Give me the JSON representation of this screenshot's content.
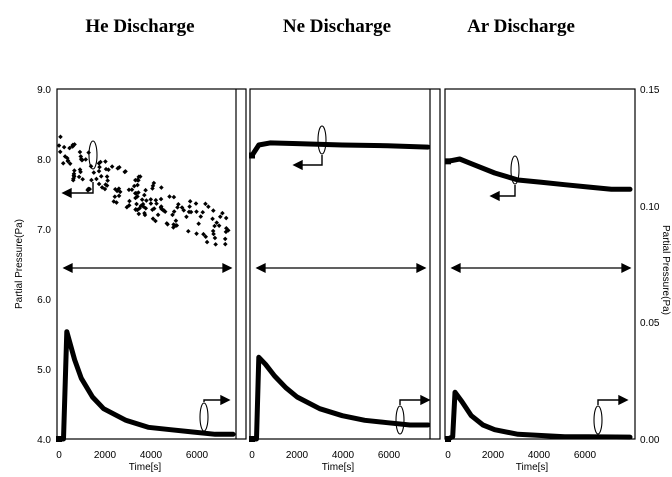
{
  "chart_data": [
    {
      "type": "scatter",
      "title": "He Discharge",
      "xlabel": "Time[s]",
      "ylabel": "Partial Pressure(Pa)",
      "xlim": [
        0,
        7800
      ],
      "x_ticks": [
        "0",
        "2000",
        "4000",
        "6000"
      ],
      "ylim_left": [
        4.0,
        9.0
      ],
      "ylim_right": [
        0.0,
        0.15
      ],
      "y_ticks_left": [
        "4.0",
        "5.0",
        "6.0",
        "7.0",
        "8.0",
        "9.0"
      ],
      "series": [
        {
          "axis": "left",
          "style": "scatter",
          "points": [
            [
              0,
              8.2
            ],
            [
              400,
              8.05
            ],
            [
              800,
              7.9
            ],
            [
              1500,
              7.8
            ],
            [
              2500,
              7.65
            ],
            [
              3500,
              7.5
            ],
            [
              4500,
              7.35
            ],
            [
              5500,
              7.2
            ],
            [
              6500,
              7.1
            ],
            [
              7000,
              7.0
            ],
            [
              7500,
              6.95
            ],
            [
              7800,
              6.95
            ]
          ]
        },
        {
          "axis": "right",
          "style": "line",
          "points": [
            [
              0,
              0.0
            ],
            [
              200,
              0.0
            ],
            [
              350,
              0.046
            ],
            [
              700,
              0.034
            ],
            [
              1000,
              0.026
            ],
            [
              1500,
              0.018
            ],
            [
              2000,
              0.013
            ],
            [
              3000,
              0.008
            ],
            [
              4000,
              0.005
            ],
            [
              5000,
              0.004
            ],
            [
              6000,
              0.003
            ],
            [
              7000,
              0.002
            ],
            [
              7800,
              0.002
            ]
          ]
        }
      ],
      "arrow_left": 8.12,
      "arrow_right": 0.016
    },
    {
      "type": "scatter",
      "title": "Ne Discharge",
      "xlabel": "Time[s]",
      "xlim": [
        0,
        7800
      ],
      "x_ticks": [
        "0",
        "2000",
        "4000",
        "6000"
      ],
      "series": [
        {
          "axis": "left",
          "style": "line",
          "points": [
            [
              0,
              8.05
            ],
            [
              300,
              8.2
            ],
            [
              800,
              8.23
            ],
            [
              2000,
              8.22
            ],
            [
              4000,
              8.2
            ],
            [
              6000,
              8.19
            ],
            [
              7800,
              8.17
            ]
          ]
        },
        {
          "axis": "right",
          "style": "line",
          "points": [
            [
              0,
              0.0
            ],
            [
              200,
              0.0
            ],
            [
              300,
              0.035
            ],
            [
              600,
              0.032
            ],
            [
              1000,
              0.027
            ],
            [
              1500,
              0.022
            ],
            [
              2000,
              0.018
            ],
            [
              3000,
              0.013
            ],
            [
              4000,
              0.01
            ],
            [
              5000,
              0.008
            ],
            [
              6000,
              0.007
            ],
            [
              7000,
              0.006
            ],
            [
              7800,
              0.006
            ]
          ]
        }
      ],
      "arrow_left": 8.07,
      "arrow_right": 0.016
    },
    {
      "type": "scatter",
      "title": "Ar Discharge",
      "xlabel": "Time[s]",
      "xlim": [
        0,
        7800
      ],
      "x_ticks": [
        "0",
        "2000",
        "4000",
        "6000"
      ],
      "ylabel_right": "Partial Pressure(Pa)",
      "y_ticks_right": [
        "0.00",
        "0.05",
        "0.10",
        "0.15"
      ],
      "series": [
        {
          "axis": "left",
          "style": "line",
          "points": [
            [
              0,
              0.119
            ],
            [
              500,
              0.12
            ],
            [
              1000,
              0.118
            ],
            [
              2000,
              0.114
            ],
            [
              3000,
              0.111
            ],
            [
              4000,
              0.11
            ],
            [
              5000,
              0.109
            ],
            [
              6000,
              0.108
            ],
            [
              7000,
              0.107
            ],
            [
              7800,
              0.107
            ]
          ]
        },
        {
          "axis": "right",
          "style": "line",
          "points": [
            [
              0,
              0.0
            ],
            [
              200,
              0.001
            ],
            [
              300,
              0.02
            ],
            [
              600,
              0.016
            ],
            [
              1000,
              0.01
            ],
            [
              1500,
              0.006
            ],
            [
              2000,
              0.004
            ],
            [
              3000,
              0.002
            ],
            [
              4000,
              0.0015
            ],
            [
              5000,
              0.001
            ],
            [
              6000,
              0.001
            ],
            [
              7800,
              0.0008
            ]
          ]
        }
      ],
      "arrow_left": 0.103,
      "arrow_right": 0.016
    }
  ],
  "colors": {
    "ink": "#000000",
    "background": "#ffffff"
  }
}
